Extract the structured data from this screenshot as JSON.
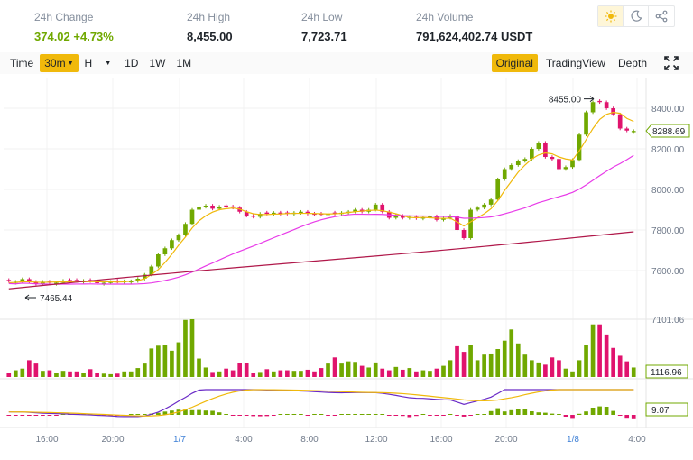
{
  "stats": {
    "change": {
      "label": "24h Change",
      "value": "374.02",
      "percent": "+4.73%"
    },
    "high": {
      "label": "24h High",
      "value": "8,455.00"
    },
    "low": {
      "label": "24h Low",
      "value": "7,723.71"
    },
    "volume": {
      "label": "24h Volume",
      "value": "791,624,402.74 USDT"
    }
  },
  "toolbar": {
    "time_label": "Time",
    "interval_selected": "30m",
    "h_label": "H",
    "intervals": [
      "1D",
      "1W",
      "1M"
    ],
    "views": [
      "Original",
      "TradingView",
      "Depth"
    ],
    "active_view": "Original"
  },
  "icons": [
    "sun-icon",
    "moon-icon",
    "share-icon",
    "fullscreen-icon"
  ],
  "colors": {
    "up": "#70a800",
    "down": "#e0136d",
    "ma7": "#f0b90b",
    "ma25": "#e83be8",
    "ma99": "#b0184a",
    "dif": "#6a2ac7",
    "active": "#f0b90b"
  },
  "chart_data": {
    "type": "candlestick",
    "price_axis_ticks": [
      "8400.00",
      "8200.00",
      "8000.00",
      "7800.00",
      "7600.00"
    ],
    "last_price": "8288.69",
    "annotations": {
      "high": "8455.00",
      "low": "7465.44"
    },
    "volume_axis_ticks": [
      "7101.06",
      "1116.96"
    ],
    "macd_axis_ticks": [
      "9.07"
    ],
    "x_ticks": [
      "16:00",
      "20:00",
      "1/7",
      "4:00",
      "8:00",
      "12:00",
      "16:00",
      "20:00",
      "1/8",
      "4:00"
    ],
    "candle_close": [
      7548,
      7545,
      7558,
      7545,
      7535,
      7545,
      7540,
      7540,
      7550,
      7548,
      7548,
      7550,
      7548,
      7538,
      7540,
      7545,
      7545,
      7548,
      7548,
      7560,
      7580,
      7620,
      7680,
      7710,
      7750,
      7775,
      7830,
      7900,
      7915,
      7920,
      7905,
      7915,
      7915,
      7910,
      7890,
      7870,
      7865,
      7880,
      7880,
      7885,
      7880,
      7880,
      7885,
      7890,
      7880,
      7875,
      7875,
      7880,
      7880,
      7885,
      7890,
      7900,
      7890,
      7900,
      7925,
      7890,
      7860,
      7870,
      7860,
      7865,
      7858,
      7862,
      7868,
      7850,
      7860,
      7870,
      7800,
      7760,
      7900,
      7910,
      7925,
      7950,
      8050,
      8100,
      8120,
      8140,
      8150,
      8200,
      8230,
      8160,
      8150,
      8100,
      8110,
      8145,
      8270,
      8380,
      8430,
      8430,
      8400,
      8370,
      8300,
      8290,
      8288
    ],
    "candle_up": [
      0,
      1,
      1,
      0,
      0,
      1,
      0,
      1,
      1,
      0,
      0,
      1,
      0,
      0,
      1,
      1,
      0,
      1,
      1,
      1,
      1,
      1,
      1,
      1,
      1,
      1,
      1,
      1,
      1,
      1,
      0,
      1,
      0,
      0,
      0,
      0,
      0,
      1,
      0,
      1,
      0,
      0,
      1,
      1,
      0,
      0,
      0,
      1,
      0,
      1,
      1,
      1,
      0,
      1,
      1,
      0,
      0,
      1,
      0,
      1,
      0,
      1,
      1,
      0,
      1,
      1,
      0,
      0,
      1,
      1,
      1,
      1,
      1,
      1,
      1,
      1,
      1,
      1,
      1,
      0,
      0,
      0,
      1,
      1,
      1,
      1,
      1,
      0,
      0,
      0,
      0,
      0,
      1
    ],
    "volume_heights": [
      7,
      12,
      15,
      30,
      24,
      11,
      12,
      8,
      11,
      10,
      10,
      8,
      14,
      7,
      6,
      5,
      6,
      10,
      10,
      16,
      24,
      51,
      56,
      57,
      47,
      62,
      102,
      120,
      33,
      17,
      9,
      10,
      15,
      12,
      25,
      25,
      8,
      9,
      14,
      10,
      12,
      12,
      11,
      11,
      13,
      10,
      16,
      24,
      35,
      24,
      28,
      27,
      20,
      17,
      26,
      15,
      12,
      18,
      13,
      16,
      10,
      12,
      11,
      15,
      20,
      30,
      55,
      45,
      58,
      30,
      40,
      42,
      50,
      65,
      85,
      60,
      40,
      30,
      26,
      22,
      35,
      30,
      15,
      10,
      30,
      58,
      94,
      94,
      76,
      52,
      38,
      28,
      17
    ],
    "ma7_line": [
      7540,
      7542,
      7545,
      7545,
      7543,
      7542,
      7543,
      7544,
      7545,
      7544,
      7545,
      7545,
      7546,
      7545,
      7545,
      7545,
      7543,
      7545,
      7548,
      7550,
      7560,
      7580,
      7605,
      7640,
      7680,
      7725,
      7765,
      7810,
      7845,
      7870,
      7888,
      7900,
      7905,
      7908,
      7903,
      7890,
      7880,
      7876,
      7876,
      7878,
      7879,
      7881,
      7882,
      7882,
      7882,
      7881,
      7880,
      7879,
      7880,
      7882,
      7886,
      7890,
      7893,
      7896,
      7898,
      7895,
      7888,
      7880,
      7870,
      7862,
      7860,
      7862,
      7860,
      7858,
      7857,
      7858,
      7840,
      7820,
      7840,
      7860,
      7880,
      7905,
      7945,
      7995,
      8040,
      8085,
      8120,
      8150,
      8170,
      8180,
      8175,
      8160,
      8150,
      8145,
      8190,
      8245,
      8300,
      8345,
      8370,
      8380,
      8375,
      8350,
      8335
    ]
  }
}
